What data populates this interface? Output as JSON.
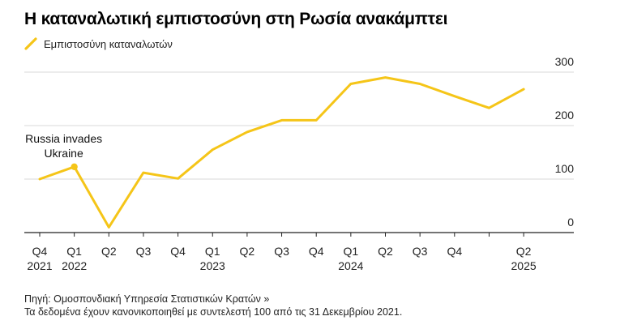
{
  "header": {
    "title": "Η καταναλωτική εμπιστοσύνη στη Ρωσία ανακάμπτει"
  },
  "legend": {
    "label": "Εμπιστοσύνη καταναλωτών",
    "icon": "diagonal-line-swatch"
  },
  "chart_data": {
    "type": "line",
    "title": "Η καταναλωτική εμπιστοσύνη στη Ρωσία ανακάμπτει",
    "xlabel": "",
    "ylabel": "",
    "ylim": [
      0,
      300
    ],
    "yticks": [
      0,
      100,
      200,
      300
    ],
    "grid": true,
    "legend_position": "top-left",
    "color": "#f5c518",
    "series": [
      {
        "name": "Εμπιστοσύνη καταναλωτών",
        "x": [
          "Q4 2021",
          "Q1 2022",
          "Q2 2022",
          "Q3 2022",
          "Q4 2022",
          "Q1 2023",
          "Q2 2023",
          "Q3 2023",
          "Q4 2023",
          "Q1 2024",
          "Q2 2024",
          "Q3 2024",
          "Q4 2024",
          "Q1 2025",
          "Q2 2025"
        ],
        "values": [
          100,
          123,
          10,
          112,
          101,
          155,
          188,
          210,
          210,
          278,
          290,
          278,
          255,
          233,
          268
        ]
      }
    ],
    "x_tick_labels": [
      {
        "q": "Q4",
        "year": "2021"
      },
      {
        "q": "Q1",
        "year": "2022"
      },
      {
        "q": "Q2",
        "year": ""
      },
      {
        "q": "Q3",
        "year": ""
      },
      {
        "q": "Q4",
        "year": ""
      },
      {
        "q": "Q1",
        "year": "2023"
      },
      {
        "q": "Q2",
        "year": ""
      },
      {
        "q": "Q3",
        "year": ""
      },
      {
        "q": "Q4",
        "year": ""
      },
      {
        "q": "Q1",
        "year": "2024"
      },
      {
        "q": "Q2",
        "year": ""
      },
      {
        "q": "Q3",
        "year": ""
      },
      {
        "q": "Q4",
        "year": ""
      },
      {
        "q": "",
        "year": ""
      },
      {
        "q": "Q2",
        "year": "2025"
      }
    ],
    "annotations": [
      {
        "text_lines": [
          "Russia invades",
          "Ukraine"
        ],
        "point_index": 1
      }
    ]
  },
  "footer": {
    "source": "Πηγή: Ομοσπονδιακή Υπηρεσία Στατιστικών Κρατών »",
    "note": "Τα δεδομένα έχουν κανονικοποιηθεί με συντελεστή 100 από τις 31 Δεκεμβρίου 2021."
  }
}
